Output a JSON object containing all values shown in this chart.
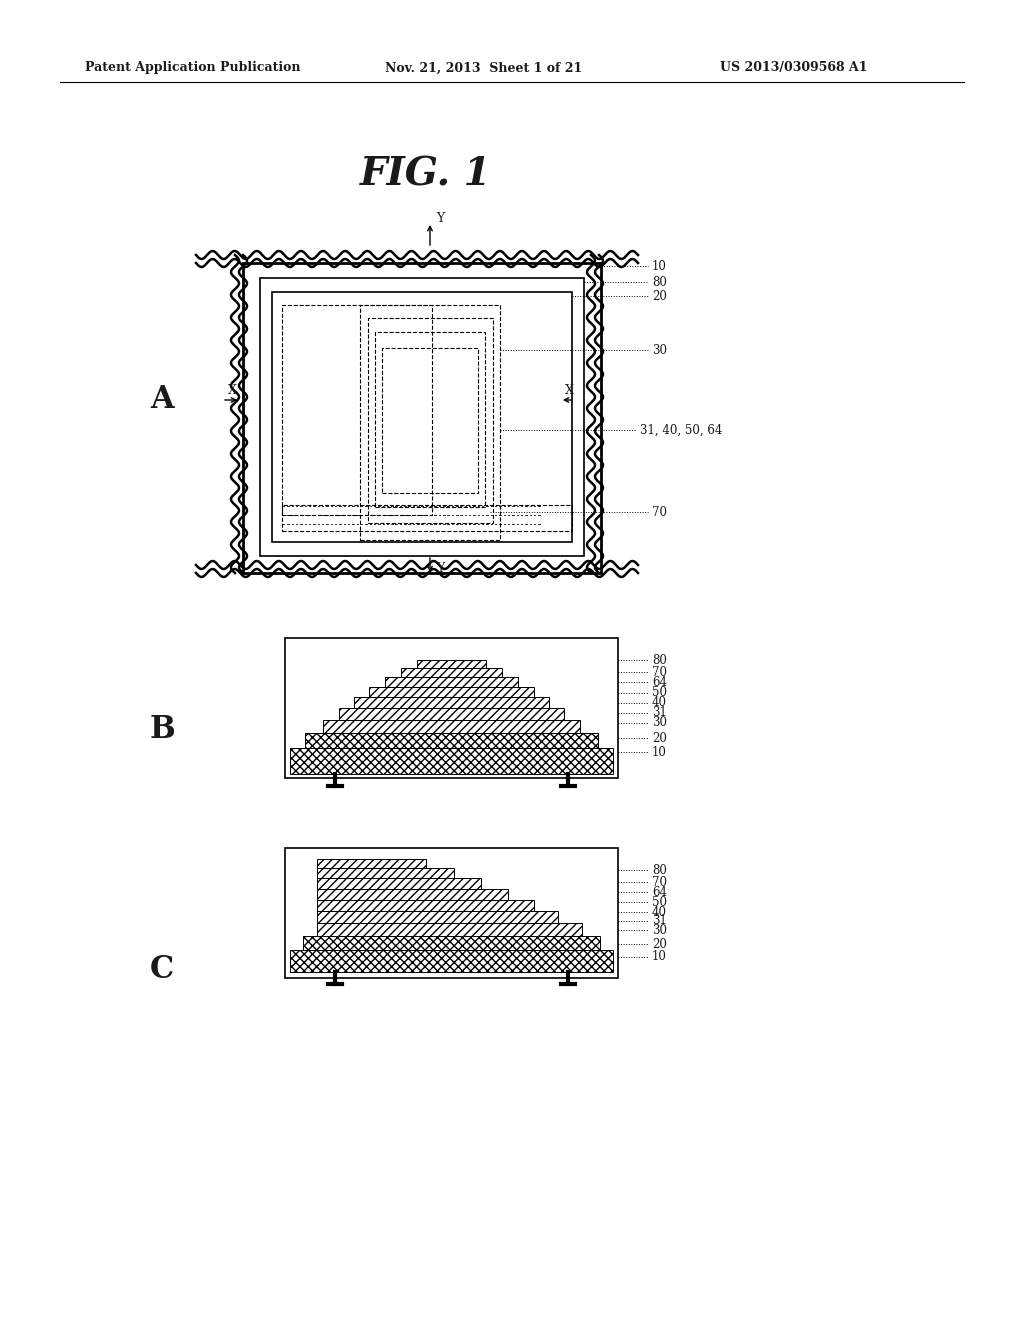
{
  "bg_color": "#ffffff",
  "text_color": "#1a1a1a",
  "header_left": "Patent Application Publication",
  "header_mid": "Nov. 21, 2013  Sheet 1 of 21",
  "header_right": "US 2013/0309568 A1",
  "fig_title": "FIG. 1",
  "label_A": "A",
  "label_B": "B",
  "label_C": "C",
  "panel_A_labels": [
    [
      "10",
      245
    ],
    [
      "80",
      300
    ],
    [
      "20",
      330
    ],
    [
      "30",
      370
    ],
    [
      "31, 40, 50, 64",
      450
    ],
    [
      "70",
      510
    ]
  ],
  "panel_B_labels": [
    [
      "80",
      660
    ],
    [
      "70",
      672
    ],
    [
      "64",
      682
    ],
    [
      "50",
      693
    ],
    [
      "40",
      703
    ],
    [
      "31",
      713
    ],
    [
      "30",
      723
    ],
    [
      "20",
      738
    ],
    [
      "10",
      752
    ]
  ],
  "panel_C_labels": [
    [
      "80",
      870
    ],
    [
      "70",
      882
    ],
    [
      "64",
      892
    ],
    [
      "50",
      902
    ],
    [
      "40",
      912
    ],
    [
      "31",
      921
    ],
    [
      "30",
      930
    ],
    [
      "20",
      944
    ],
    [
      "10",
      957
    ]
  ]
}
